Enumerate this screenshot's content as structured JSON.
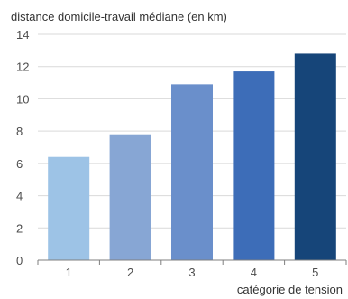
{
  "chart_data": {
    "type": "bar",
    "ylabel": "distance domicile-travail médiane (en km)",
    "xlabel": "catégorie de tension",
    "categories": [
      "1",
      "2",
      "3",
      "4",
      "5"
    ],
    "values": [
      6.4,
      7.8,
      10.9,
      11.7,
      12.8
    ],
    "ylim": [
      0,
      14
    ],
    "yticks": [
      0,
      2,
      4,
      6,
      8,
      10,
      12,
      14
    ],
    "grid": true,
    "bar_colors": [
      "#9dc3e6",
      "#87a6d4",
      "#6a8fcb",
      "#3d6db8",
      "#164579"
    ]
  }
}
